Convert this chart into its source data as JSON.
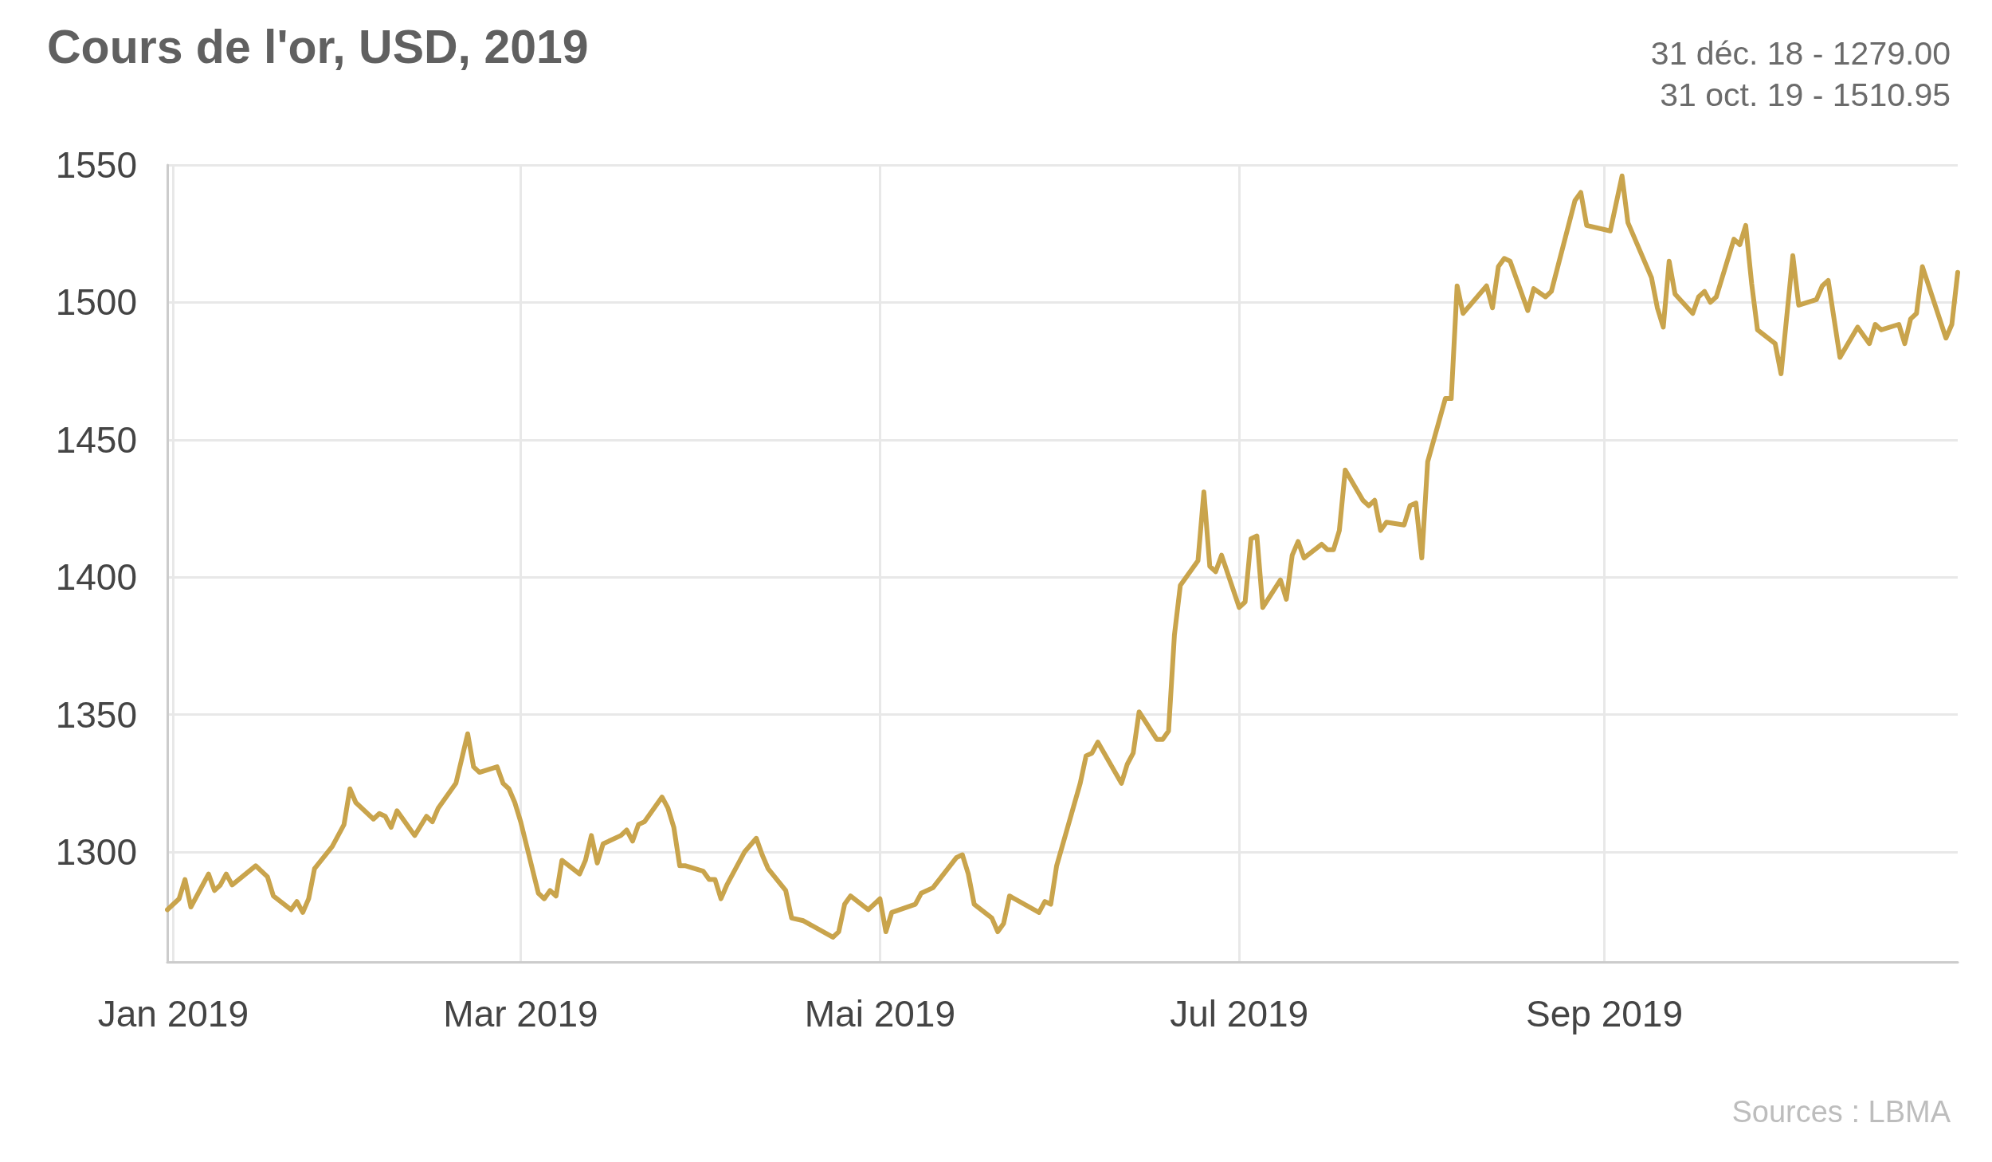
{
  "chart_data": {
    "type": "line",
    "title": "Cours de l'or, USD, 2019",
    "annotations": [
      "31 déc. 18 - 1279.00",
      "31 oct. 19 - 1510.95",
      "Sources : LBMA"
    ],
    "x": [
      "2018-12-31",
      "2019-01-02",
      "2019-01-03",
      "2019-01-04",
      "2019-01-07",
      "2019-01-08",
      "2019-01-09",
      "2019-01-10",
      "2019-01-11",
      "2019-01-15",
      "2019-01-17",
      "2019-01-18",
      "2019-01-21",
      "2019-01-22",
      "2019-01-23",
      "2019-01-24",
      "2019-01-25",
      "2019-01-28",
      "2019-01-30",
      "2019-01-31",
      "2019-02-01",
      "2019-02-04",
      "2019-02-05",
      "2019-02-06",
      "2019-02-07",
      "2019-02-08",
      "2019-02-11",
      "2019-02-13",
      "2019-02-14",
      "2019-02-15",
      "2019-02-18",
      "2019-02-20",
      "2019-02-21",
      "2019-02-22",
      "2019-02-25",
      "2019-02-26",
      "2019-02-27",
      "2019-02-28",
      "2019-03-01",
      "2019-03-04",
      "2019-03-05",
      "2019-03-06",
      "2019-03-07",
      "2019-03-08",
      "2019-03-11",
      "2019-03-12",
      "2019-03-13",
      "2019-03-14",
      "2019-03-15",
      "2019-03-18",
      "2019-03-19",
      "2019-03-20",
      "2019-03-21",
      "2019-03-22",
      "2019-03-25",
      "2019-03-26",
      "2019-03-27",
      "2019-03-28",
      "2019-03-29",
      "2019-04-01",
      "2019-04-02",
      "2019-04-03",
      "2019-04-04",
      "2019-04-05",
      "2019-04-08",
      "2019-04-10",
      "2019-04-11",
      "2019-04-12",
      "2019-04-15",
      "2019-04-16",
      "2019-04-18",
      "2019-04-23",
      "2019-04-24",
      "2019-04-25",
      "2019-04-26",
      "2019-04-29",
      "2019-05-01",
      "2019-05-02",
      "2019-05-03",
      "2019-05-07",
      "2019-05-08",
      "2019-05-10",
      "2019-05-14",
      "2019-05-15",
      "2019-05-16",
      "2019-05-17",
      "2019-05-20",
      "2019-05-21",
      "2019-05-22",
      "2019-05-23",
      "2019-05-28",
      "2019-05-29",
      "2019-05-30",
      "2019-05-31",
      "2019-06-04",
      "2019-06-05",
      "2019-06-06",
      "2019-06-07",
      "2019-06-11",
      "2019-06-12",
      "2019-06-13",
      "2019-06-14",
      "2019-06-17",
      "2019-06-18",
      "2019-06-19",
      "2019-06-20",
      "2019-06-21",
      "2019-06-24",
      "2019-06-25",
      "2019-06-26",
      "2019-06-27",
      "2019-06-28",
      "2019-07-01",
      "2019-07-02",
      "2019-07-03",
      "2019-07-04",
      "2019-07-05",
      "2019-07-08",
      "2019-07-09",
      "2019-07-10",
      "2019-07-11",
      "2019-07-12",
      "2019-07-15",
      "2019-07-16",
      "2019-07-17",
      "2019-07-18",
      "2019-07-19",
      "2019-07-22",
      "2019-07-23",
      "2019-07-24",
      "2019-07-25",
      "2019-07-26",
      "2019-07-29",
      "2019-07-30",
      "2019-07-31",
      "2019-08-01",
      "2019-08-02",
      "2019-08-05",
      "2019-08-06",
      "2019-08-07",
      "2019-08-08",
      "2019-08-12",
      "2019-08-13",
      "2019-08-14",
      "2019-08-15",
      "2019-08-16",
      "2019-08-19",
      "2019-08-20",
      "2019-08-22",
      "2019-08-23",
      "2019-08-27",
      "2019-08-28",
      "2019-08-29",
      "2019-09-02",
      "2019-09-04",
      "2019-09-05",
      "2019-09-09",
      "2019-09-10",
      "2019-09-11",
      "2019-09-12",
      "2019-09-13",
      "2019-09-16",
      "2019-09-17",
      "2019-09-18",
      "2019-09-19",
      "2019-09-20",
      "2019-09-23",
      "2019-09-24",
      "2019-09-25",
      "2019-09-26",
      "2019-09-27",
      "2019-09-30",
      "2019-10-01",
      "2019-10-03",
      "2019-10-04",
      "2019-10-07",
      "2019-10-08",
      "2019-10-09",
      "2019-10-11",
      "2019-10-14",
      "2019-10-16",
      "2019-10-17",
      "2019-10-18",
      "2019-10-21",
      "2019-10-22",
      "2019-10-23",
      "2019-10-24",
      "2019-10-25",
      "2019-10-29",
      "2019-10-30",
      "2019-10-31"
    ],
    "values": [
      1279,
      1283,
      1290,
      1280,
      1292,
      1286,
      1288,
      1292,
      1288,
      1295,
      1291,
      1284,
      1279,
      1282,
      1278,
      1283,
      1294,
      1302,
      1310,
      1323,
      1318,
      1312,
      1314,
      1313,
      1309,
      1315,
      1306,
      1313,
      1311,
      1316,
      1325,
      1343,
      1331,
      1329,
      1331,
      1325,
      1323,
      1318,
      1311,
      1285,
      1283,
      1286,
      1284,
      1297,
      1292,
      1297,
      1306,
      1296,
      1303,
      1306,
      1308,
      1304,
      1310,
      1311,
      1320,
      1316,
      1309,
      1295,
      1295,
      1293,
      1290,
      1290,
      1283,
      1288,
      1300,
      1305,
      1299,
      1294,
      1286,
      1276,
      1275,
      1269,
      1271,
      1281,
      1284,
      1279,
      1283,
      1271,
      1278,
      1281,
      1285,
      1287,
      1298,
      1299,
      1292,
      1281,
      1276,
      1271,
      1274,
      1284,
      1278,
      1282,
      1281,
      1295,
      1325,
      1335,
      1336,
      1340,
      1325,
      1332,
      1336,
      1351,
      1341,
      1341,
      1344,
      1379,
      1397,
      1406,
      1431,
      1404,
      1402,
      1408,
      1389,
      1391,
      1414,
      1415,
      1389,
      1399,
      1392,
      1408,
      1413,
      1407,
      1412,
      1410,
      1410,
      1417,
      1439,
      1428,
      1426,
      1428,
      1417,
      1420,
      1419,
      1426,
      1427,
      1407,
      1442,
      1465,
      1465,
      1506,
      1496,
      1506,
      1498,
      1513,
      1516,
      1515,
      1497,
      1505,
      1502,
      1504,
      1537,
      1540,
      1528,
      1526,
      1546,
      1529,
      1509,
      1498,
      1491,
      1515,
      1503,
      1496,
      1502,
      1504,
      1500,
      1502,
      1523,
      1521,
      1528,
      1507,
      1490,
      1485,
      1474,
      1517,
      1499,
      1501,
      1506,
      1508,
      1480,
      1491,
      1485,
      1492,
      1490,
      1492,
      1485,
      1494,
      1496,
      1513,
      1487,
      1492,
      1510.95
    ],
    "color": "#c9a44c",
    "marker": "none",
    "line_style": "solid",
    "xlim": [
      "2018-12-31",
      "2019-10-31"
    ],
    "xticks": [
      {
        "value": "2019-01",
        "label": "Jan 2019"
      },
      {
        "value": "2019-03",
        "label": "Mar 2019"
      },
      {
        "value": "2019-05",
        "label": "Mai 2019"
      },
      {
        "value": "2019-07",
        "label": "Jul 2019"
      },
      {
        "value": "2019-09",
        "label": "Sep 2019"
      }
    ],
    "ylim": [
      1260,
      1550
    ],
    "yticks": [
      1300,
      1350,
      1400,
      1450,
      1500,
      1550
    ],
    "grid": true
  }
}
